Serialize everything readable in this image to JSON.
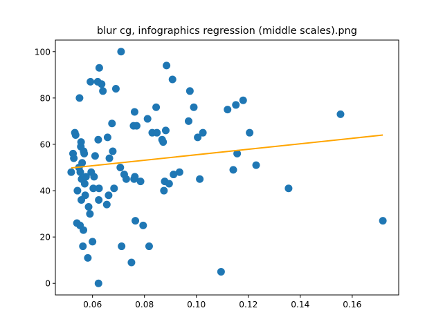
{
  "chart_data": {
    "type": "scatter",
    "title": "blur cg, infographics regression (middle scales).png",
    "xlabel": "",
    "ylabel": "",
    "xlim": [
      0.0457,
      0.1779
    ],
    "ylim": [
      -5,
      105
    ],
    "x_ticks": [
      0.06,
      0.08,
      0.1,
      0.12,
      0.14,
      0.16
    ],
    "x_tick_labels": [
      "0.06",
      "0.08",
      "0.10",
      "0.12",
      "0.14",
      "0.16"
    ],
    "y_ticks": [
      0,
      20,
      40,
      60,
      80,
      100
    ],
    "y_tick_labels": [
      "0",
      "20",
      "40",
      "60",
      "80",
      "100"
    ],
    "grid": false,
    "legend": false,
    "series": [
      {
        "kind": "scatter",
        "color": "#1f77b4",
        "points": [
          [
            0.0518,
            48
          ],
          [
            0.0525,
            56
          ],
          [
            0.0528,
            54
          ],
          [
            0.0532,
            65
          ],
          [
            0.0535,
            64
          ],
          [
            0.054,
            26
          ],
          [
            0.0542,
            40
          ],
          [
            0.0548,
            50
          ],
          [
            0.055,
            80
          ],
          [
            0.0552,
            25
          ],
          [
            0.0553,
            48
          ],
          [
            0.0555,
            59
          ],
          [
            0.0556,
            61
          ],
          [
            0.0557,
            36
          ],
          [
            0.0558,
            45
          ],
          [
            0.056,
            52
          ],
          [
            0.0563,
            16
          ],
          [
            0.0565,
            23
          ],
          [
            0.0566,
            57
          ],
          [
            0.0568,
            56
          ],
          [
            0.057,
            43
          ],
          [
            0.0572,
            38
          ],
          [
            0.0575,
            46
          ],
          [
            0.0582,
            11
          ],
          [
            0.0585,
            33
          ],
          [
            0.059,
            30
          ],
          [
            0.0592,
            87
          ],
          [
            0.0595,
            48
          ],
          [
            0.06,
            18
          ],
          [
            0.0603,
            41
          ],
          [
            0.0606,
            46
          ],
          [
            0.061,
            55
          ],
          [
            0.062,
            87
          ],
          [
            0.0622,
            62
          ],
          [
            0.0623,
            0
          ],
          [
            0.0624,
            36
          ],
          [
            0.0625,
            41
          ],
          [
            0.0626,
            93
          ],
          [
            0.0635,
            86
          ],
          [
            0.064,
            83
          ],
          [
            0.0655,
            34
          ],
          [
            0.0658,
            63
          ],
          [
            0.0662,
            38
          ],
          [
            0.0665,
            54
          ],
          [
            0.0675,
            69
          ],
          [
            0.0678,
            57
          ],
          [
            0.0683,
            41
          ],
          [
            0.069,
            84
          ],
          [
            0.0707,
            50
          ],
          [
            0.071,
            100
          ],
          [
            0.0712,
            16
          ],
          [
            0.0722,
            47
          ],
          [
            0.073,
            45
          ],
          [
            0.075,
            9
          ],
          [
            0.0758,
            68
          ],
          [
            0.076,
            45
          ],
          [
            0.0762,
            74
          ],
          [
            0.0763,
            46
          ],
          [
            0.0765,
            27
          ],
          [
            0.077,
            68
          ],
          [
            0.0785,
            44
          ],
          [
            0.0795,
            25
          ],
          [
            0.0812,
            71
          ],
          [
            0.0818,
            16
          ],
          [
            0.083,
            65
          ],
          [
            0.0845,
            76
          ],
          [
            0.0848,
            65
          ],
          [
            0.0868,
            62
          ],
          [
            0.0872,
            61
          ],
          [
            0.0875,
            40
          ],
          [
            0.0878,
            44
          ],
          [
            0.0882,
            66
          ],
          [
            0.0885,
            94
          ],
          [
            0.0895,
            43
          ],
          [
            0.0908,
            88
          ],
          [
            0.0912,
            47
          ],
          [
            0.0935,
            48
          ],
          [
            0.097,
            70
          ],
          [
            0.0975,
            83
          ],
          [
            0.099,
            76
          ],
          [
            0.1005,
            63
          ],
          [
            0.1013,
            45
          ],
          [
            0.1025,
            65
          ],
          [
            0.1095,
            5
          ],
          [
            0.112,
            75
          ],
          [
            0.1142,
            49
          ],
          [
            0.1152,
            77
          ],
          [
            0.1157,
            56
          ],
          [
            0.118,
            79
          ],
          [
            0.1205,
            65
          ],
          [
            0.123,
            51
          ],
          [
            0.1355,
            41
          ],
          [
            0.1555,
            73
          ],
          [
            0.1718,
            27
          ]
        ]
      },
      {
        "kind": "line",
        "color": "#ffa500",
        "points": [
          [
            0.0518,
            49.8
          ],
          [
            0.1718,
            64.0
          ]
        ]
      }
    ]
  }
}
